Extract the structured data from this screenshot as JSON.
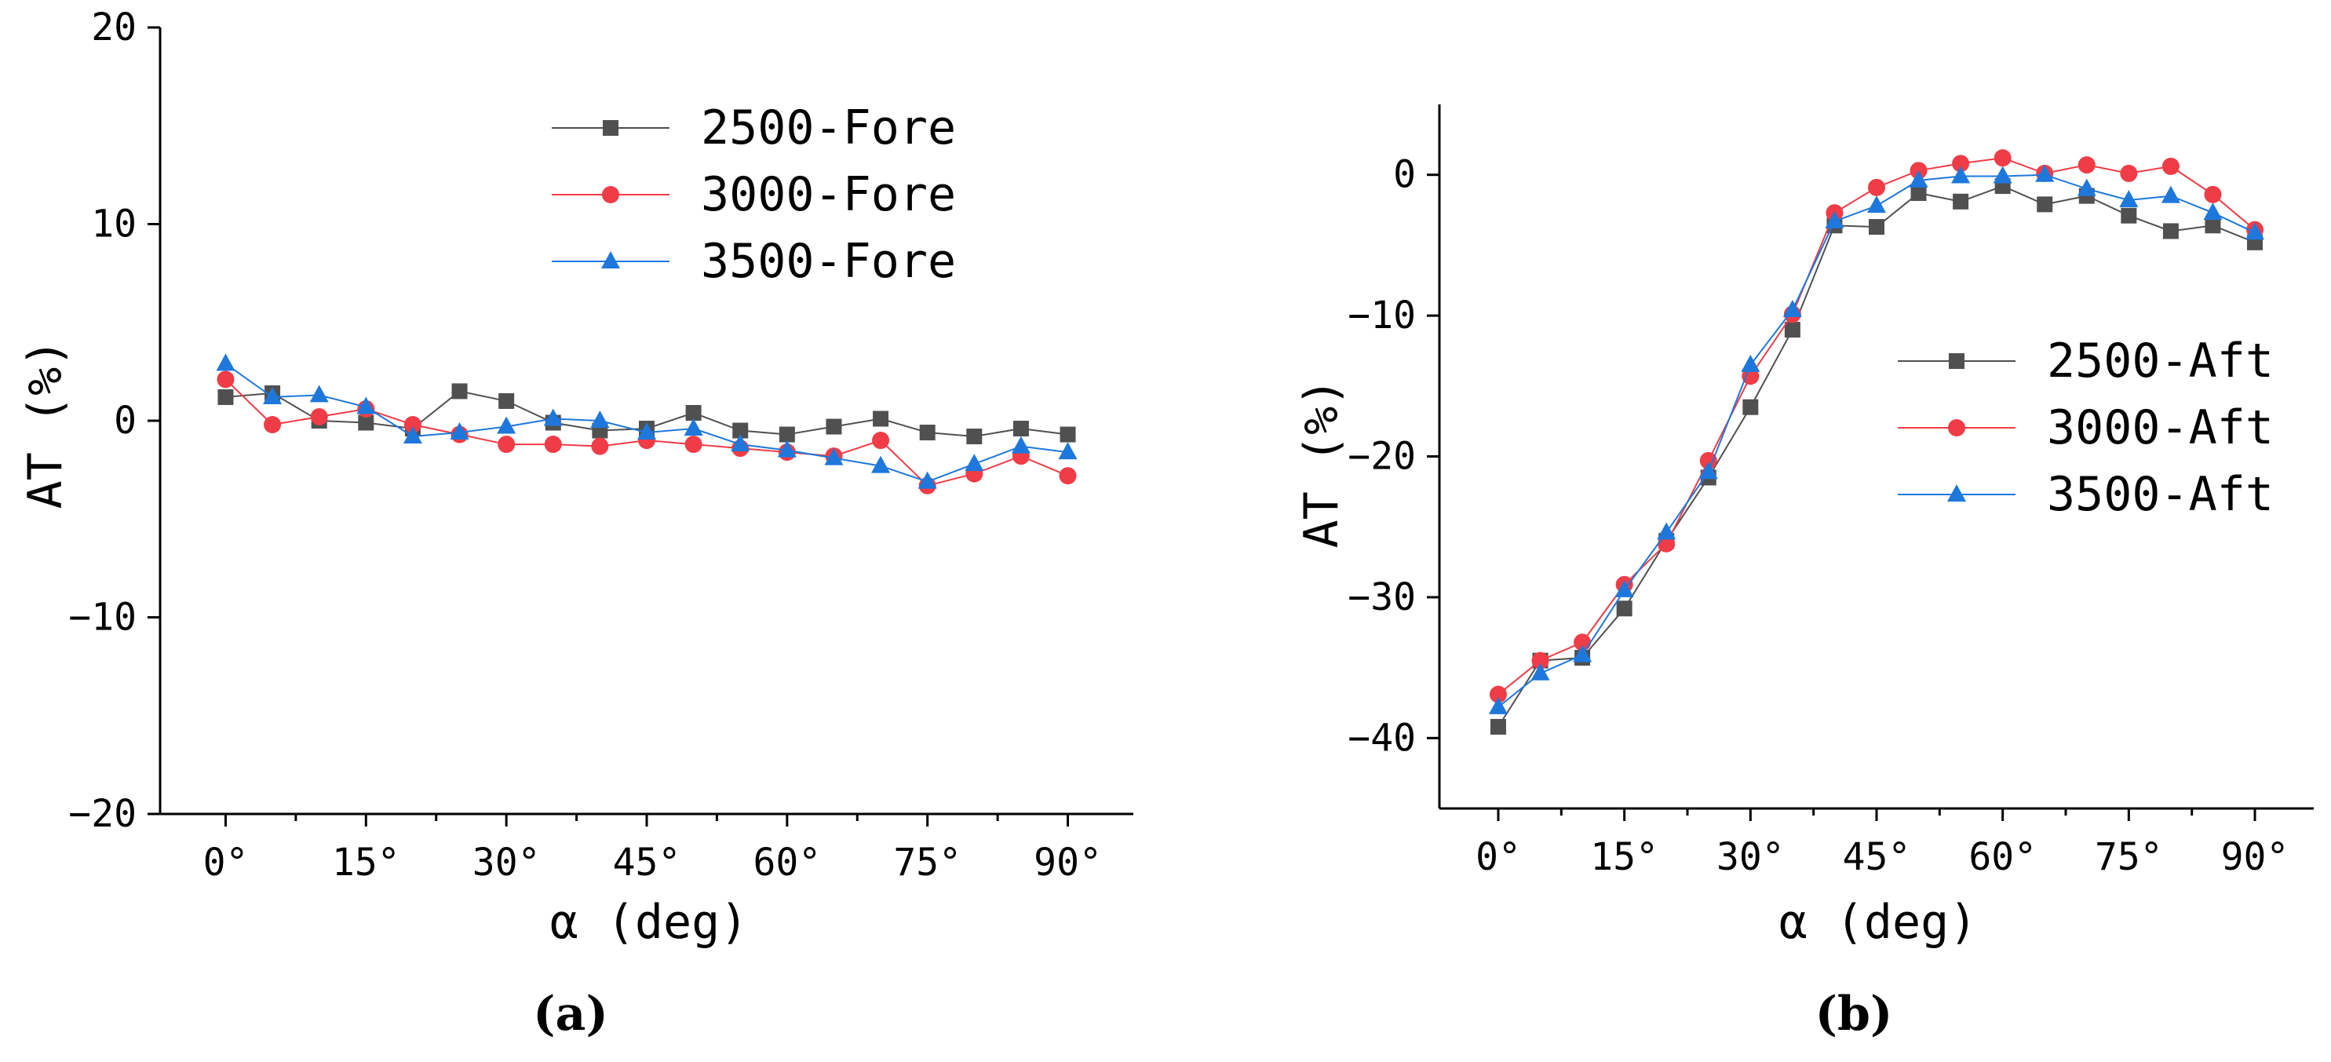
{
  "chart_data": [
    {
      "type": "line",
      "panel_label": "(a)",
      "ylabel": "AT (%)",
      "xlabel": "α (deg)",
      "xlim": [
        -7,
        97
      ],
      "ylim": [
        -20,
        20
      ],
      "xticks": [
        0,
        15,
        30,
        45,
        60,
        75,
        90
      ],
      "xtick_labels": [
        "0°",
        "15°",
        "30°",
        "45°",
        "60°",
        "75°",
        "90°"
      ],
      "yticks": [
        20,
        10,
        0,
        -10,
        -20
      ],
      "ytick_labels": [
        "20",
        "10",
        "0",
        "−10",
        "−20"
      ],
      "legend_position": "top-center",
      "grid": false,
      "x": [
        0,
        5,
        10,
        15,
        20,
        25,
        30,
        35,
        40,
        45,
        50,
        55,
        60,
        65,
        70,
        75,
        80,
        85,
        90
      ],
      "series": [
        {
          "name": "2500-Fore",
          "marker": "square",
          "color": "#505050",
          "values": [
            1.2,
            1.4,
            0.0,
            -0.1,
            -0.4,
            1.5,
            1.0,
            -0.1,
            -0.5,
            -0.4,
            0.4,
            -0.5,
            -0.7,
            -0.3,
            0.1,
            -0.6,
            -0.8,
            -0.4,
            -0.7
          ]
        },
        {
          "name": "3000-Fore",
          "marker": "circle",
          "color": "#f03c46",
          "values": [
            2.1,
            -0.2,
            0.2,
            0.6,
            -0.2,
            -0.7,
            -1.2,
            -1.2,
            -1.3,
            -1.0,
            -1.2,
            -1.4,
            -1.6,
            -1.8,
            -1.0,
            -3.3,
            -2.7,
            -1.8,
            -2.8
          ]
        },
        {
          "name": "3500-Fore",
          "marker": "triangle",
          "color": "#1e78dc",
          "values": [
            2.9,
            1.2,
            1.3,
            0.7,
            -0.8,
            -0.6,
            -0.3,
            0.1,
            0.0,
            -0.6,
            -0.4,
            -1.2,
            -1.5,
            -1.9,
            -2.3,
            -3.1,
            -2.2,
            -1.3,
            -1.6
          ]
        }
      ]
    },
    {
      "type": "line",
      "panel_label": "(b)",
      "ylabel": "AT (%)",
      "xlabel": "α (deg)",
      "xlim": [
        -7,
        97
      ],
      "ylim": [
        -45,
        5
      ],
      "xticks": [
        0,
        15,
        30,
        45,
        60,
        75,
        90
      ],
      "xtick_labels": [
        "0°",
        "15°",
        "30°",
        "45°",
        "60°",
        "75°",
        "90°"
      ],
      "yticks": [
        0,
        -10,
        -20,
        -30,
        -40
      ],
      "ytick_labels": [
        "0",
        "−10",
        "−20",
        "−30",
        "−40"
      ],
      "legend_position": "center-right",
      "grid": false,
      "x": [
        0,
        5,
        10,
        15,
        20,
        25,
        30,
        35,
        40,
        45,
        50,
        55,
        60,
        65,
        70,
        75,
        80,
        85,
        90
      ],
      "series": [
        {
          "name": "2500-Aft",
          "marker": "square",
          "color": "#505050",
          "values": [
            -39.2,
            -34.5,
            -34.3,
            -30.8,
            -26.0,
            -21.5,
            -16.5,
            -11.0,
            -3.6,
            -3.7,
            -1.3,
            -1.9,
            -0.8,
            -2.1,
            -1.5,
            -2.9,
            -4.0,
            -3.6,
            -4.8
          ]
        },
        {
          "name": "3000-Aft",
          "marker": "circle",
          "color": "#f03c46",
          "values": [
            -36.9,
            -34.5,
            -33.2,
            -29.1,
            -26.2,
            -20.3,
            -14.3,
            -9.9,
            -2.7,
            -0.9,
            0.3,
            0.8,
            1.2,
            0.1,
            0.7,
            0.1,
            0.6,
            -1.4,
            -3.9
          ]
        },
        {
          "name": "3500-Aft",
          "marker": "triangle",
          "color": "#1e78dc",
          "values": [
            -37.8,
            -35.4,
            -34.1,
            -29.5,
            -25.4,
            -21.1,
            -13.5,
            -9.6,
            -3.3,
            -2.2,
            -0.4,
            -0.1,
            -0.1,
            0.0,
            -1.0,
            -1.8,
            -1.5,
            -2.7,
            -4.1
          ]
        }
      ]
    }
  ]
}
